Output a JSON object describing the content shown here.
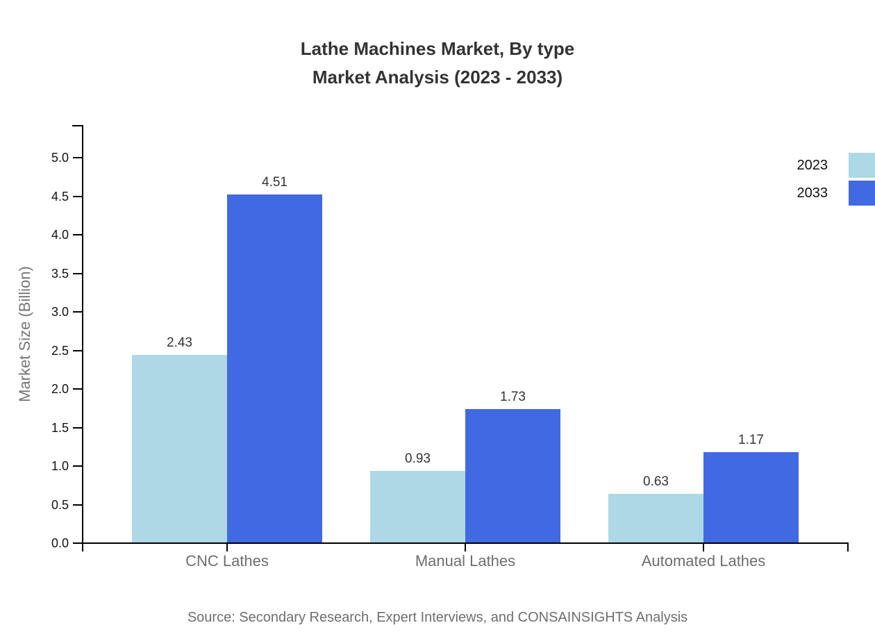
{
  "title": {
    "line1": "Lathe Machines Market, By type",
    "line2": "Market Analysis (2023 - 2033)"
  },
  "footer": {
    "source": "Source: Secondary Research, Expert Interviews, and CONSAINSIGHTS Analysis"
  },
  "colors": {
    "series_2023": "#ADD8E6",
    "series_2033": "#4169E1",
    "axis": "#000000",
    "title_text": "#333333",
    "tick_label_text": "#111111",
    "category_label_text": "#6e6e6e",
    "value_label_text": "#333333",
    "source_text": "#6e6e6e"
  },
  "chart_data": {
    "type": "bar",
    "title": "Lathe Machines Market, By type — Market Analysis (2023 - 2033)",
    "title_lines": [
      "Lathe Machines Market, By type",
      "Market Analysis (2023 - 2033)"
    ],
    "categories": [
      "CNC Lathes",
      "Manual Lathes",
      "Automated Lathes"
    ],
    "series": [
      {
        "name": "2023",
        "color": "#ADD8E6",
        "values": [
          2.43,
          0.93,
          0.63
        ]
      },
      {
        "name": "2033",
        "color": "#4169E1",
        "values": [
          4.51,
          1.73,
          1.17
        ]
      }
    ],
    "xlabel": "",
    "ylabel": "Market Size (Billion)",
    "ylim": [
      0.0,
      5.0
    ],
    "ytick_step": 0.5,
    "yticks": [
      0.0,
      0.5,
      1.0,
      1.5,
      2.0,
      2.5,
      3.0,
      3.5,
      4.0,
      4.5,
      5.0
    ],
    "grid": false,
    "legend_position": "top-right",
    "value_labels": true,
    "value_label_decimals": 2
  }
}
